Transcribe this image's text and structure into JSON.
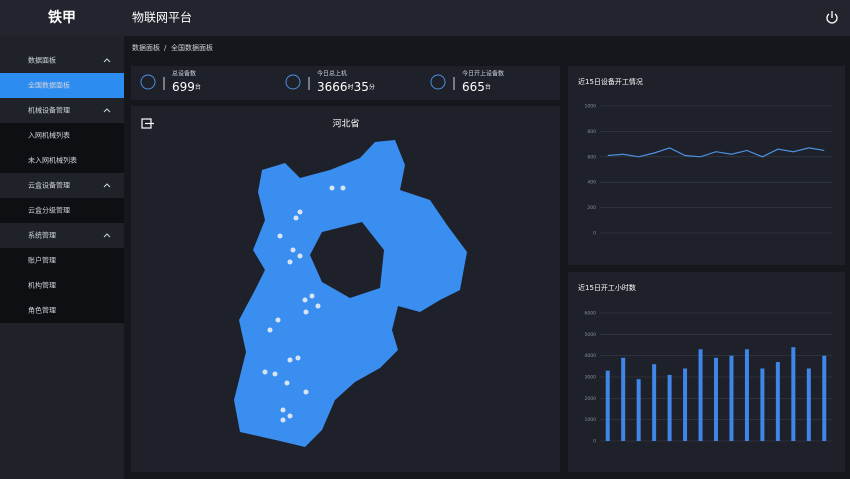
{
  "header": {
    "logo": "铁甲",
    "title": "物联网平台"
  },
  "breadcrumb": {
    "items": [
      "数据面板",
      "全国数据面板"
    ],
    "separator": "/"
  },
  "sidebar": {
    "groups": [
      {
        "label": "数据面板",
        "items": [
          "全国数据面板"
        ]
      },
      {
        "label": "机械设备管理",
        "items": [
          "入网机械列表",
          "未入网机械列表"
        ]
      },
      {
        "label": "云盒设备管理",
        "items": [
          "云盒分级管理"
        ]
      },
      {
        "label": "系统管理",
        "items": [
          "账户管理",
          "机构管理",
          "角色管理"
        ]
      }
    ]
  },
  "stats": [
    {
      "label": "总设备数",
      "value": 699,
      "unit": "台"
    },
    {
      "label": "今日总上机",
      "value": 3666,
      "unit": "时",
      "value2": 35,
      "unit2": "分"
    },
    {
      "label": "今日开上设备数",
      "value": 665,
      "unit": "台"
    }
  ],
  "map": {
    "title": "河北省"
  },
  "charts": [
    {
      "type": "line",
      "title": "近15日设备开工情况",
      "color": "#4d8fe0",
      "values": [
        610,
        620,
        600,
        630,
        670,
        610,
        600,
        640,
        620,
        650,
        600,
        660,
        640,
        670,
        650
      ],
      "ylim": [
        0,
        1000
      ],
      "yticks": [
        0,
        200,
        400,
        600,
        800,
        1000
      ]
    },
    {
      "type": "bar",
      "title": "近15日开工小时数",
      "color": "#3f86e8",
      "values": [
        3300,
        3900,
        2900,
        3600,
        3100,
        3400,
        4300,
        3900,
        4000,
        4300,
        3400,
        3700,
        4400,
        3400,
        4000
      ],
      "ylim": [
        0,
        6000
      ],
      "yticks": [
        0,
        1000,
        2000,
        3000,
        4000,
        5000,
        6000
      ]
    }
  ]
}
